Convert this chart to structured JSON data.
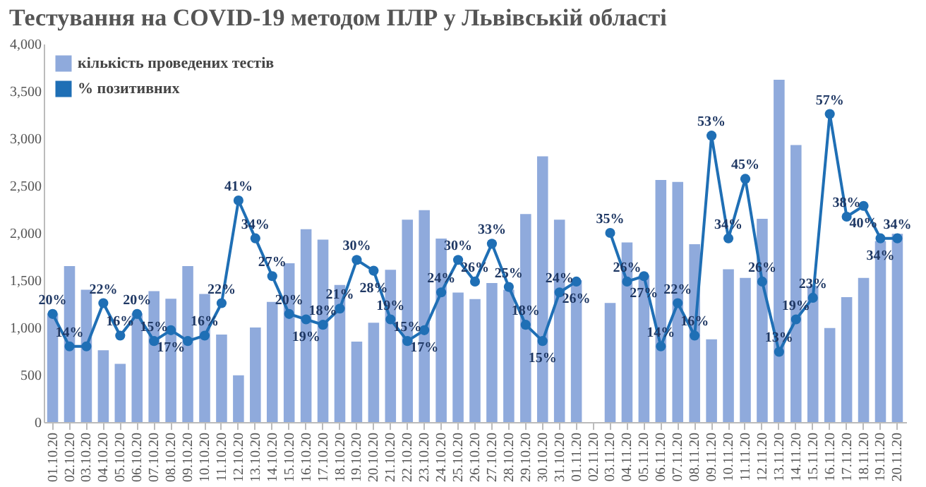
{
  "chart_data": {
    "type": "bar",
    "title": "Тестування на COVID-19 методом ПЛР у Львівській області",
    "categories": [
      "01.10.20",
      "02.10.20",
      "03.10.20",
      "04.10.20",
      "05.10.20",
      "06.10.20",
      "07.10.20",
      "08.10.20",
      "09.10.20",
      "10.10.20",
      "11.10.20",
      "12.10.20",
      "13.10.20",
      "14.10.20",
      "15.10.20",
      "16.10.20",
      "17.10.20",
      "18.10.20",
      "19.10.20",
      "20.10.20",
      "21.10.20",
      "22.10.20",
      "23.10.20",
      "24.10.20",
      "25.10.20",
      "26.10.20",
      "27.10.20",
      "28.10.20",
      "29.10.20",
      "30.10.20",
      "31.10.20",
      "01.11.20",
      "02.11.20",
      "03.11.20",
      "04.11.20",
      "05.11.20",
      "06.11.20",
      "07.11.20",
      "08.11.20",
      "09.11.20",
      "10.11.20",
      "11.11.20",
      "12.11.20",
      "13.11.20",
      "14.11.20",
      "15.11.20",
      "16.11.20",
      "17.11.20",
      "18.11.20",
      "19.11.20",
      "20.11.20"
    ],
    "series": [
      {
        "name": "кількість проведених тестів",
        "color": "#8faadc",
        "values": [
          1150,
          1650,
          1400,
          760,
          615,
          1150,
          1385,
          1305,
          1650,
          1355,
          925,
          495,
          1000,
          1270,
          1680,
          2040,
          1930,
          1450,
          850,
          1050,
          1610,
          2140,
          2240,
          1940,
          1370,
          1300,
          1470,
          1400,
          2200,
          2810,
          2140,
          1500,
          null,
          1260,
          1900,
          1550,
          2560,
          2540,
          1880,
          875,
          1615,
          1525,
          2150,
          3620,
          2930,
          1440,
          995,
          1320,
          1525,
          1915,
          1990
        ]
      },
      {
        "name": "% позитивних",
        "type": "line",
        "axis": "y2",
        "color": "#1f6fb5",
        "marker": "circle",
        "values": [
          20,
          14,
          14,
          22,
          16,
          20,
          15,
          17,
          15,
          16,
          22,
          41,
          34,
          27,
          20,
          19,
          18,
          21,
          30,
          28,
          19,
          15,
          17,
          24,
          30,
          26,
          33,
          25,
          18,
          15,
          24,
          26,
          null,
          35,
          26,
          27,
          14,
          22,
          16,
          53,
          34,
          45,
          26,
          13,
          19,
          23,
          57,
          38,
          40,
          34,
          34
        ],
        "value_labels": [
          "20%",
          "14%",
          null,
          "22%",
          "16%",
          "20%",
          "15%",
          "17%",
          null,
          "16%",
          "22%",
          "41%",
          "34%",
          "27%",
          "20%",
          "19%",
          "18%",
          "21%",
          "30%",
          "28%",
          "19%",
          "15%",
          "17%",
          "24%",
          "30%",
          "26%",
          "33%",
          "25%",
          "18%",
          "15%",
          "24%",
          "26%",
          null,
          "35%",
          "26%",
          "27%",
          "14%",
          "22%",
          "16%",
          "53%",
          "34%",
          "45%",
          "26%",
          "13%",
          "19%",
          "23%",
          "57%",
          "38%",
          "40%",
          "34%",
          "34%"
        ]
      }
    ],
    "ylim": [
      0,
      4000
    ],
    "yticks": [
      0,
      500,
      {
        "value": 1000,
        "label": "1,000"
      },
      {
        "value": 1500,
        "label": "1,500"
      },
      {
        "value": 2000,
        "label": "2,000"
      },
      {
        "value": 2500,
        "label": "2,500"
      },
      {
        "value": 3000,
        "label": "3,000"
      },
      {
        "value": 3500,
        "label": "3,500"
      },
      {
        "value": 4000,
        "label": "4,000"
      }
    ],
    "y2lim": [
      0,
      70
    ],
    "legend": "top left",
    "grid": false
  }
}
